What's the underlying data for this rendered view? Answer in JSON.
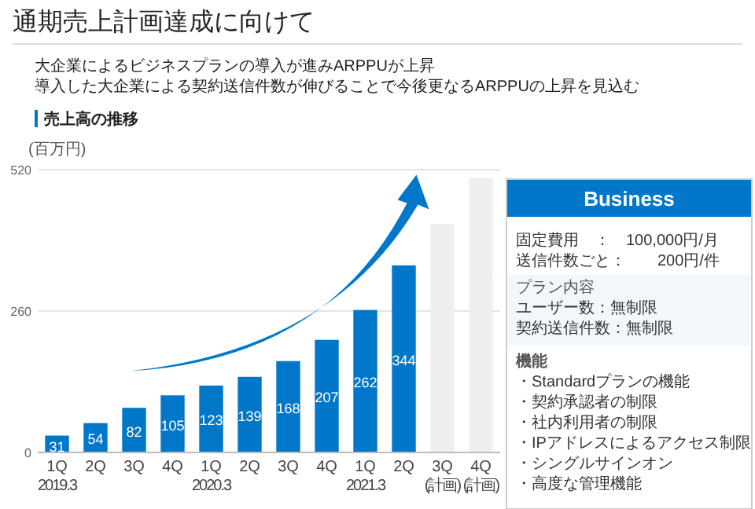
{
  "chart_data": [
    {
      "type": "bar",
      "title": "通期売上計画達成に向けて",
      "subtitle": "大企業によるビジネスプランの導入が進みARPPUが上昇",
      "ylabel": "(百万円)",
      "annotations": [
        "導入した大企業による契約送信件数が伸びることで今後更なるARPPUの上昇を見込む",
        "売上高の推移"
      ],
      "categories": [
        "1Q\n2019.3",
        "2Q",
        "3Q",
        "4Q",
        "1Q\n2020.3",
        "2Q",
        "3Q",
        "4Q",
        "1Q\n2021.3",
        "2Q",
        "3Q\n(計画)",
        "4Q\n(計画)"
      ],
      "values": [
        31,
        54,
        82,
        105,
        123,
        139,
        168,
        207,
        262,
        344,
        420,
        505
      ],
      "value_labels": [
        "31",
        "54",
        "82",
        "105",
        "123",
        "139",
        "168",
        "207",
        "262",
        "344",
        null,
        null
      ],
      "colors": [
        "#0077c8",
        "#0077c8",
        "#0077c8",
        "#0077c8",
        "#0077c8",
        "#0077c8",
        "#0077c8",
        "#0077c8",
        "#0077c8",
        "#0077c8",
        "#efefef",
        "#efefef"
      ],
      "ylim": [
        0,
        520
      ],
      "yticks": [
        0,
        260,
        520
      ],
      "grid": "y"
    },
    {
      "type": "other",
      "title": "Business",
      "annotations": [
        "固定費用　：　100,000円/月",
        "送信件数ごと：　　200円/件",
        "プラン内容",
        "ユーザー数：無制限",
        "契約送信件数：無制限",
        "機能",
        "・Standardプランの機能",
        "・契約承認者の制限",
        "・社内利用者の制限",
        "・IPアドレスによるアクセス制限",
        "・シングルサインオン",
        "・高度な管理機能"
      ]
    }
  ]
}
